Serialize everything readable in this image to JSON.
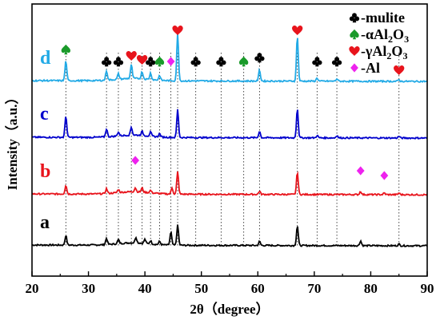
{
  "chart_data": {
    "type": "line",
    "xlabel": "2θ（degree）",
    "ylabel": "Intensity（a.u.）",
    "xlim": [
      20,
      90
    ],
    "xticks": [
      20,
      30,
      40,
      50,
      60,
      70,
      80,
      90
    ],
    "grid": false,
    "legend_position": "top-right",
    "legend": [
      {
        "symbol": "club",
        "text": "-mulite",
        "color": "#000000"
      },
      {
        "symbol": "spade",
        "text": "-αAl2O3",
        "color": "#1a9a2a"
      },
      {
        "symbol": "heart",
        "text": "-γAl2O3",
        "color": "#e8141c"
      },
      {
        "symbol": "diamond",
        "text": "-Al",
        "color": "#ee22ee"
      }
    ],
    "series": [
      {
        "label": "a",
        "color": "#000000",
        "baseline": 0.0,
        "peaks": [
          [
            26.0,
            0.12
          ],
          [
            33.2,
            0.08
          ],
          [
            35.3,
            0.05
          ],
          [
            38.4,
            0.07
          ],
          [
            40.0,
            0.05
          ],
          [
            41.0,
            0.04
          ],
          [
            42.6,
            0.04
          ],
          [
            44.6,
            0.16
          ],
          [
            45.8,
            0.25
          ],
          [
            60.3,
            0.05
          ],
          [
            67.0,
            0.25
          ],
          [
            78.2,
            0.06
          ],
          [
            85.0,
            0.02
          ]
        ]
      },
      {
        "label": "b",
        "color": "#e8141c",
        "baseline": 1.0,
        "peaks": [
          [
            26.0,
            0.11
          ],
          [
            33.2,
            0.06
          ],
          [
            35.3,
            0.04
          ],
          [
            38.3,
            0.05
          ],
          [
            39.5,
            0.05
          ],
          [
            41.0,
            0.03
          ],
          [
            44.8,
            0.08
          ],
          [
            45.8,
            0.28
          ],
          [
            60.3,
            0.04
          ],
          [
            67.0,
            0.28
          ],
          [
            78.2,
            0.04
          ],
          [
            82.4,
            0.02
          ],
          [
            85.0,
            0.02
          ]
        ]
      },
      {
        "label": "c",
        "color": "#0000cc",
        "baseline": 2.0,
        "peaks": [
          [
            26.0,
            0.27
          ],
          [
            33.2,
            0.1
          ],
          [
            35.3,
            0.05
          ],
          [
            37.6,
            0.1
          ],
          [
            39.5,
            0.05
          ],
          [
            41.0,
            0.05
          ],
          [
            42.6,
            0.04
          ],
          [
            45.8,
            0.35
          ],
          [
            60.3,
            0.08
          ],
          [
            67.0,
            0.37
          ],
          [
            70.5,
            0.03
          ],
          [
            74.0,
            0.03
          ],
          [
            85.0,
            0.02
          ]
        ]
      },
      {
        "label": "d",
        "color": "#22aae6",
        "baseline": 3.0,
        "peaks": [
          [
            26.0,
            0.25
          ],
          [
            33.2,
            0.12
          ],
          [
            35.3,
            0.07
          ],
          [
            37.6,
            0.17
          ],
          [
            39.5,
            0.09
          ],
          [
            41.0,
            0.08
          ],
          [
            42.6,
            0.06
          ],
          [
            45.8,
            0.6
          ],
          [
            60.3,
            0.14
          ],
          [
            67.0,
            0.57
          ],
          [
            70.5,
            0.04
          ],
          [
            74.0,
            0.03
          ],
          [
            85.0,
            0.02
          ]
        ]
      }
    ],
    "markers": [
      {
        "symbol": "spade",
        "x": 26.0,
        "level": "d"
      },
      {
        "symbol": "club",
        "x": 33.2,
        "level": "d"
      },
      {
        "symbol": "club",
        "x": 35.3,
        "level": "d"
      },
      {
        "symbol": "heart",
        "x": 37.6,
        "level": "d"
      },
      {
        "symbol": "heart",
        "x": 39.5,
        "level": "d"
      },
      {
        "symbol": "club",
        "x": 41.0,
        "level": "d"
      },
      {
        "symbol": "spade",
        "x": 42.6,
        "level": "d"
      },
      {
        "symbol": "diamond",
        "x": 44.6,
        "level": "d"
      },
      {
        "symbol": "heart",
        "x": 45.8,
        "level": "top"
      },
      {
        "symbol": "club",
        "x": 49.0,
        "level": "d"
      },
      {
        "symbol": "club",
        "x": 53.5,
        "level": "d"
      },
      {
        "symbol": "spade",
        "x": 57.5,
        "level": "d"
      },
      {
        "symbol": "club",
        "x": 60.3,
        "level": "d"
      },
      {
        "symbol": "heart",
        "x": 67.0,
        "level": "top"
      },
      {
        "symbol": "club",
        "x": 70.5,
        "level": "d"
      },
      {
        "symbol": "club",
        "x": 74.0,
        "level": "d"
      },
      {
        "symbol": "heart",
        "x": 85.0,
        "level": "d"
      },
      {
        "symbol": "diamond",
        "x": 38.3,
        "level": "b"
      },
      {
        "symbol": "diamond",
        "x": 78.2,
        "level": "b"
      },
      {
        "symbol": "diamond",
        "x": 82.4,
        "level": "b"
      }
    ],
    "dashed_lines_x": [
      26.0,
      33.2,
      35.3,
      37.6,
      39.5,
      41.0,
      42.6,
      44.6,
      45.8,
      49.0,
      53.5,
      57.5,
      60.3,
      67.0,
      70.5,
      74.0,
      85.0
    ]
  }
}
